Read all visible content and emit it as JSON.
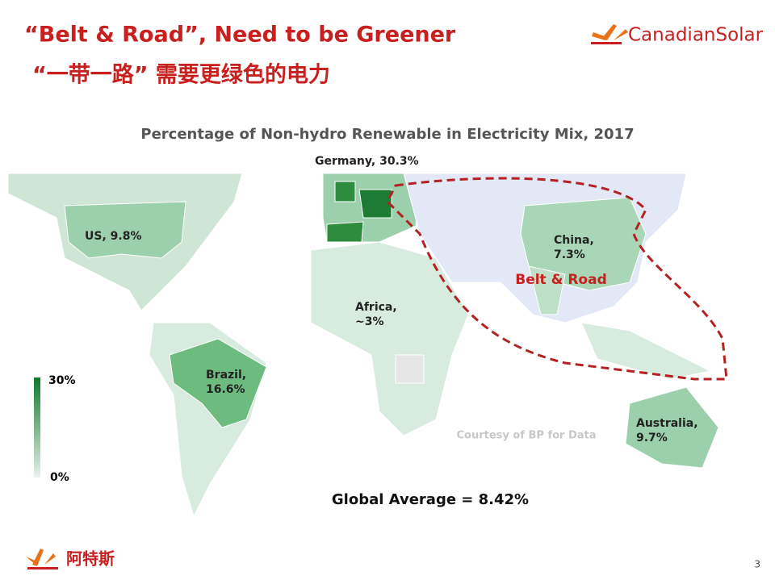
{
  "header": {
    "title_en": "“Belt & Road”, Need to be Greener",
    "title_zh": "“一带一路” 需要更绿色的电力",
    "logo": "CanadianSolar"
  },
  "map": {
    "title": "Percentage of Non-hydro Renewable in Electricity Mix,  2017",
    "labels": [
      {
        "lines": [
          "Germany,  30.3%"
        ]
      },
      {
        "lines": [
          "US, 9.8%"
        ]
      },
      {
        "lines": [
          "China,",
          "7.3%"
        ]
      },
      {
        "lines": [
          "Africa,",
          "~3%"
        ]
      },
      {
        "lines": [
          "Brazil,",
          "16.6%"
        ]
      },
      {
        "lines": [
          "Australia,",
          "9.7%"
        ]
      }
    ],
    "region_label": "Belt & Road",
    "legend": {
      "max": "30%",
      "min": "0%"
    },
    "credit": "Courtesy of BP for Data",
    "global_average": "Global Average = 8.42%"
  },
  "footer": {
    "logo_zh": "阿特斯",
    "page": "3"
  }
}
